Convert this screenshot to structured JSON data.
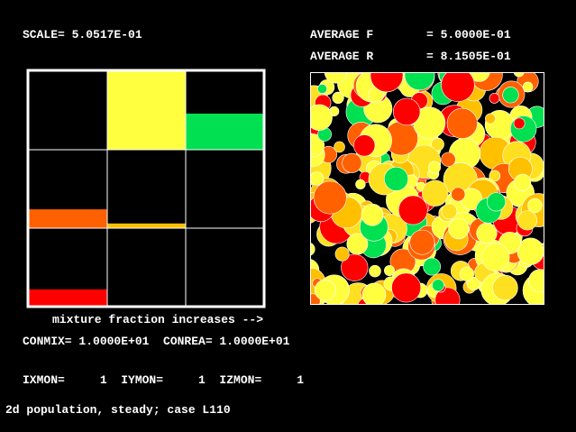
{
  "header": {
    "scale": "SCALE= 5.0517E-01",
    "average_f_label": "AVERAGE F",
    "average_f_value": "= 5.0000E-01",
    "average_r_label": "AVERAGE R",
    "average_r_value": "= 8.1505E-01"
  },
  "grid": {
    "cells": [
      [
        {
          "value": 0,
          "color": "#000000"
        },
        {
          "value": 1.0,
          "color": "#ffff40"
        },
        {
          "value": 0.46,
          "color": "#00e050"
        }
      ],
      [
        {
          "value": 0.24,
          "color": "#ff6000"
        },
        {
          "value": 0.06,
          "color": "#ffc000"
        },
        {
          "value": 0,
          "color": "#000000"
        }
      ],
      [
        {
          "value": 0.22,
          "color": "#ff0000"
        },
        {
          "value": 0,
          "color": "#000000"
        },
        {
          "value": 0,
          "color": "#000000"
        }
      ]
    ]
  },
  "caption": "mixture fraction increases -->",
  "constants": "CONMIX= 1.0000E+01  CONREA= 1.0000E+01",
  "monitor": "IXMON=     1  IYMON=     1  IZMON=     1",
  "footer": "2d population, steady; case L110"
}
